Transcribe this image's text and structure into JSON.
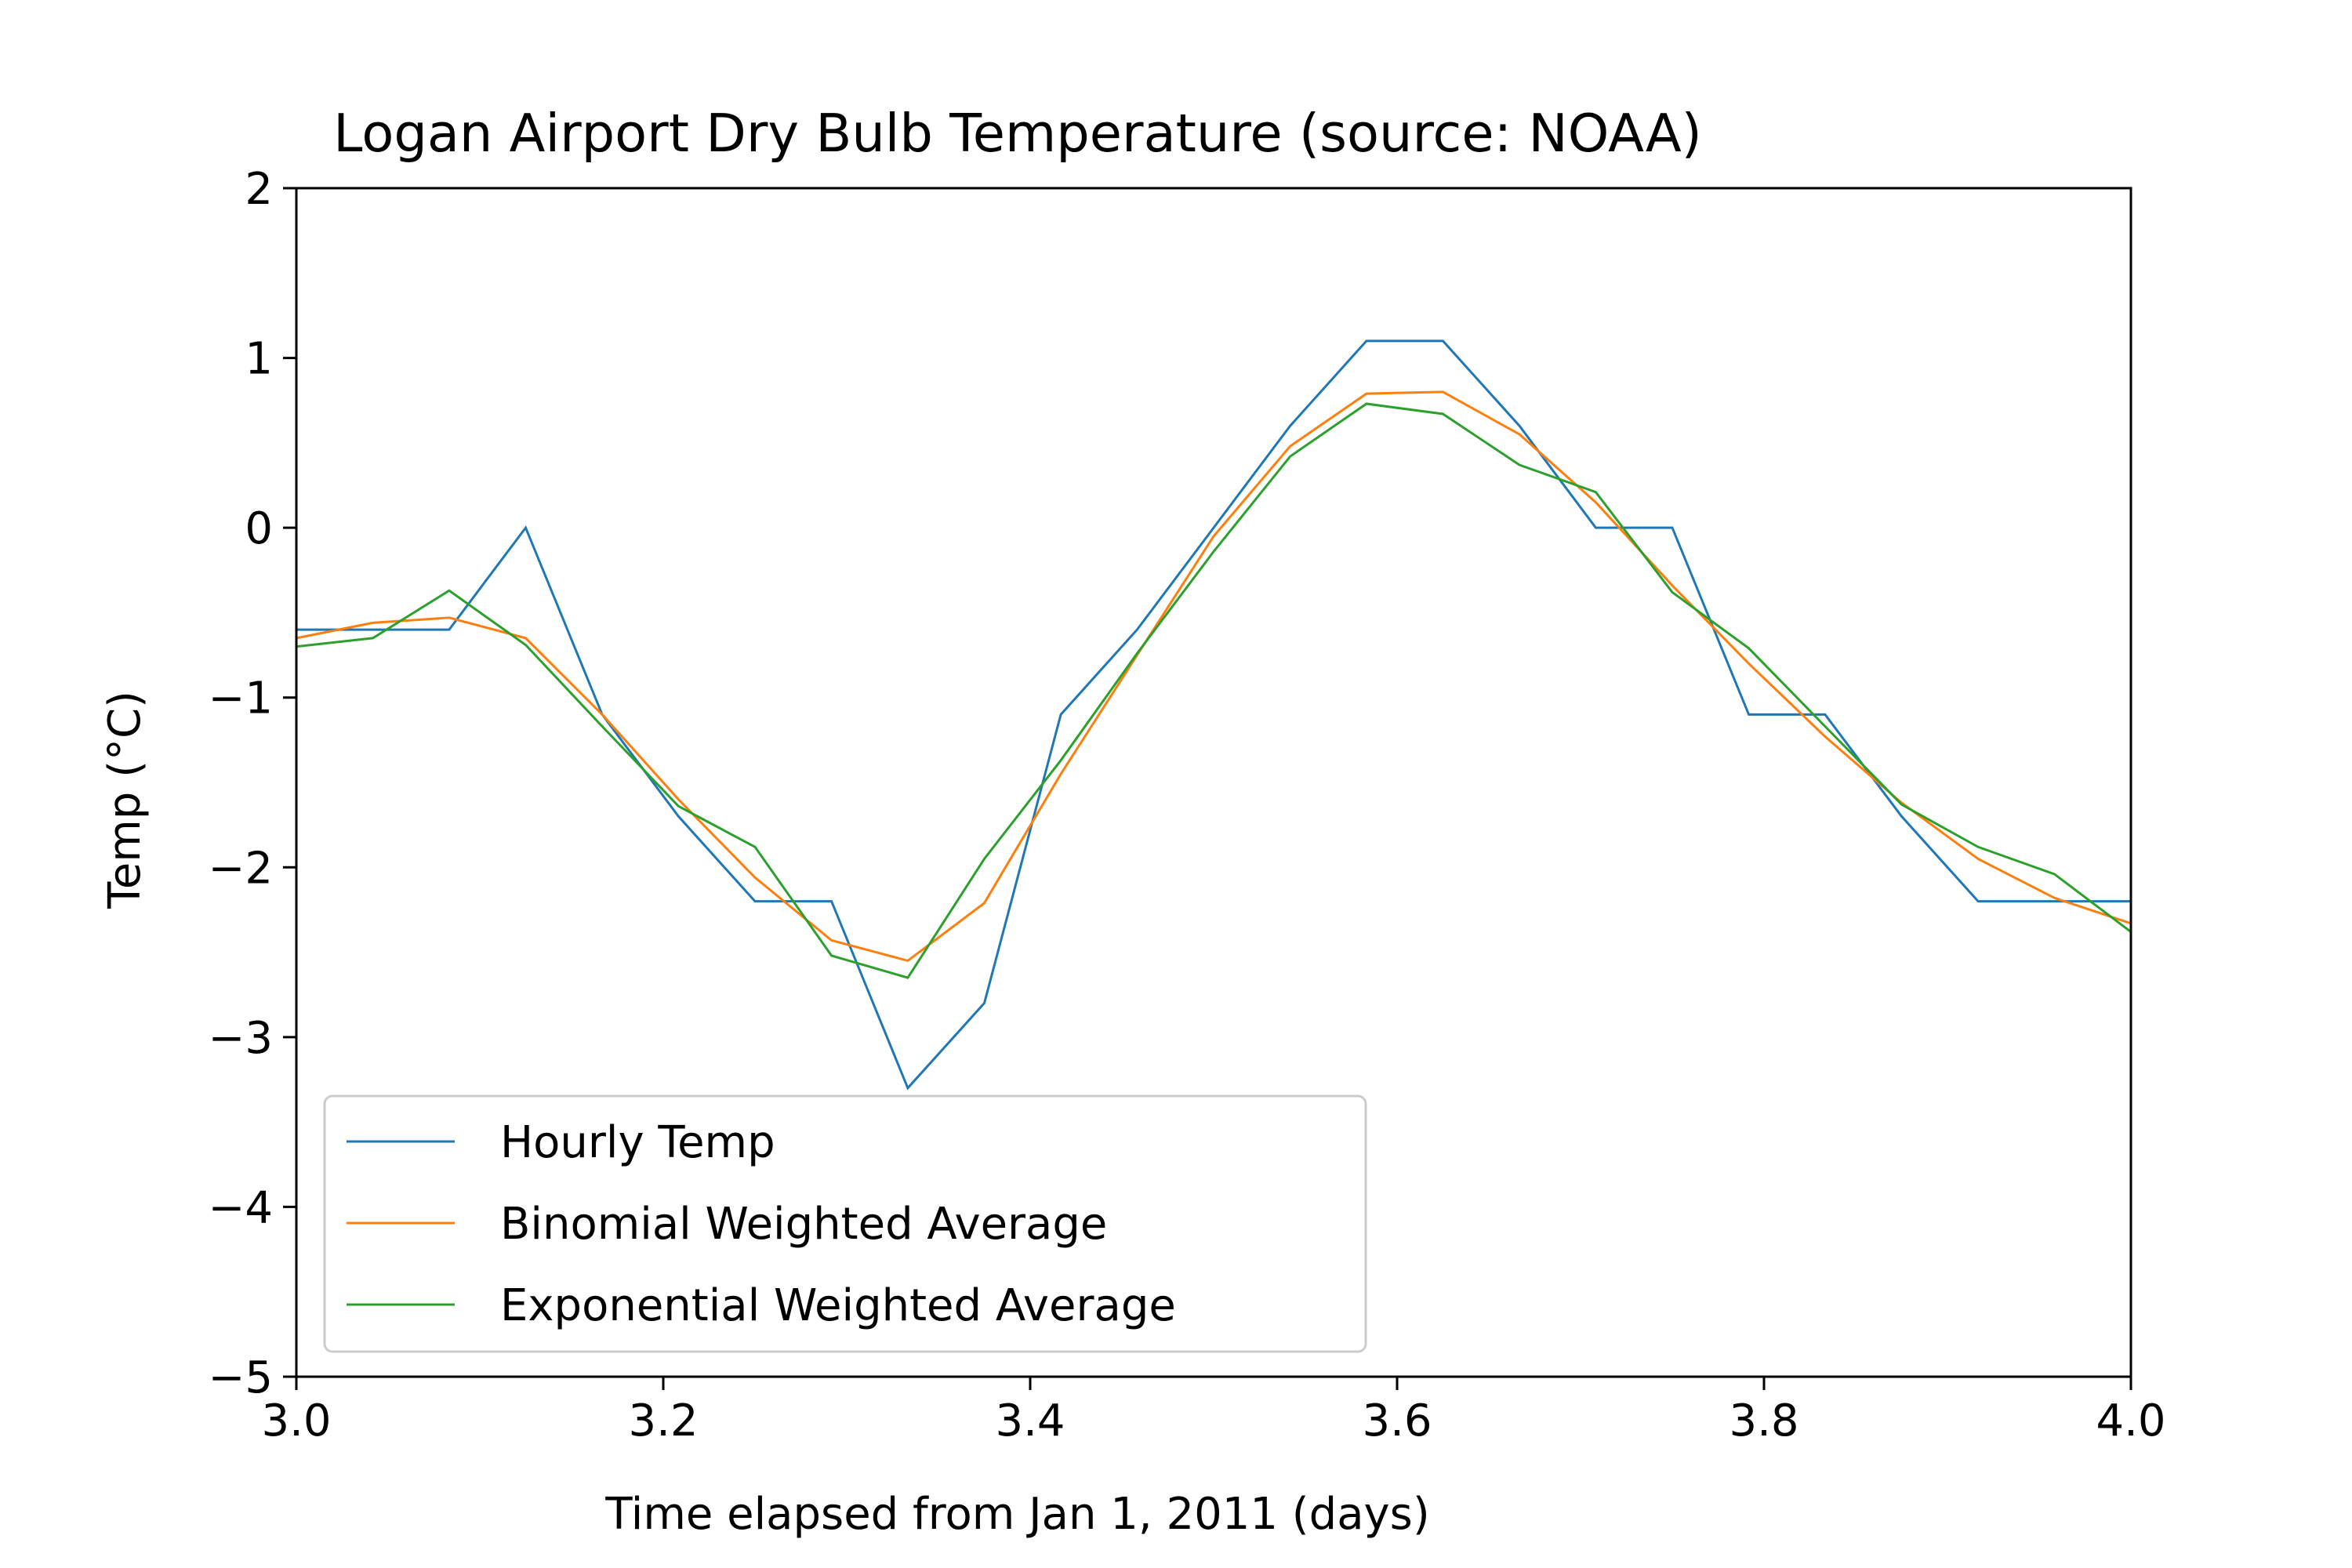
{
  "chart_data": {
    "type": "line",
    "title": "Logan Airport Dry Bulb Temperature (source: NOAA)",
    "xlabel": "Time elapsed from Jan 1, 2011 (days)",
    "ylabel": "Temp (°C)",
    "xlim": [
      3.0,
      4.0
    ],
    "ylim": [
      -5,
      2
    ],
    "xticks": [
      3.0,
      3.2,
      3.4,
      3.6,
      3.8,
      4.0
    ],
    "xtick_labels": [
      "3.0",
      "3.2",
      "3.4",
      "3.6",
      "3.8",
      "4.0"
    ],
    "yticks": [
      2,
      1,
      0,
      -1,
      -2,
      -3,
      -4,
      -5
    ],
    "ytick_labels": [
      "2",
      "1",
      "0",
      "−1",
      "−2",
      "−3",
      "−4",
      "−5"
    ],
    "grid": false,
    "legend_position": "lower-left",
    "x": [
      3.0,
      3.0417,
      3.0833,
      3.125,
      3.1667,
      3.2083,
      3.25,
      3.2917,
      3.3333,
      3.375,
      3.4167,
      3.4583,
      3.5,
      3.5417,
      3.5833,
      3.625,
      3.6667,
      3.7083,
      3.75,
      3.7917,
      3.8333,
      3.875,
      3.9167,
      3.9583,
      4.0
    ],
    "series": [
      {
        "name": "Hourly Temp",
        "color": "#1f77b4",
        "values": [
          -0.6,
          -0.6,
          -0.6,
          0.0,
          -1.1,
          -1.7,
          -2.2,
          -2.2,
          -3.3,
          -2.8,
          -1.1,
          -0.6,
          0.0,
          0.6,
          1.1,
          1.1,
          0.6,
          0.0,
          0.0,
          -1.1,
          -1.1,
          -1.7,
          -2.2,
          -2.2,
          -2.2
        ]
      },
      {
        "name": "Binomial Weighted Average",
        "color": "#ff7f0e",
        "values": [
          -0.65,
          -0.56,
          -0.53,
          -0.65,
          -1.1,
          -1.6,
          -2.06,
          -2.43,
          -2.55,
          -2.21,
          -1.45,
          -0.75,
          -0.05,
          0.48,
          0.79,
          0.8,
          0.55,
          0.15,
          -0.34,
          -0.8,
          -1.23,
          -1.62,
          -1.95,
          -2.18,
          -2.33
        ]
      },
      {
        "name": "Exponential Weighted Average",
        "color": "#2ca02c",
        "values": [
          -0.7,
          -0.65,
          -0.37,
          -0.69,
          -1.17,
          -1.64,
          -1.88,
          -2.52,
          -2.65,
          -1.95,
          -1.37,
          -0.74,
          -0.14,
          0.42,
          0.73,
          0.67,
          0.37,
          0.21,
          -0.38,
          -0.71,
          -1.17,
          -1.63,
          -1.88,
          -2.04,
          -2.38
        ]
      }
    ]
  }
}
